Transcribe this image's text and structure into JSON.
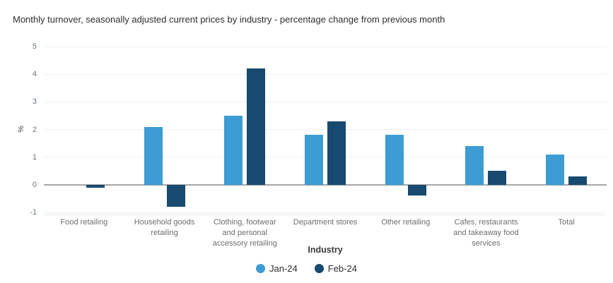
{
  "title": "Monthly turnover, seasonally adjusted current prices by industry - percentage change from previous month",
  "chart_data": {
    "type": "bar",
    "categories": [
      "Food retailing",
      "Household goods retailing",
      "Clothing, footwear and personal accessory retailing",
      "Department stores",
      "Other retailing",
      "Cafes, restaurants and takeaway food services",
      "Total"
    ],
    "series": [
      {
        "name": "Jan-24",
        "color": "#3d9cd4",
        "values": [
          0.0,
          2.1,
          2.5,
          1.8,
          1.8,
          1.4,
          1.1
        ]
      },
      {
        "name": "Feb-24",
        "color": "#174a6e",
        "values": [
          -0.1,
          -0.8,
          4.2,
          2.3,
          -0.4,
          0.5,
          0.3
        ]
      }
    ],
    "xlabel": "Industry",
    "ylabel": "%",
    "ylim": [
      -1,
      5
    ],
    "yticks": [
      5,
      4,
      3,
      2,
      1,
      0,
      -1
    ],
    "grid": true,
    "legend_position": "bottom"
  },
  "colors": {
    "series_jan": "#3d9cd4",
    "series_feb": "#174a6e",
    "gridline": "#f0f0f0",
    "zero_line": "#a6a6a6",
    "axis_bottom": "#ebebeb",
    "tick_text": "#68757e",
    "label_text": "#6d6d6d",
    "title_text": "#2e2e2e"
  }
}
